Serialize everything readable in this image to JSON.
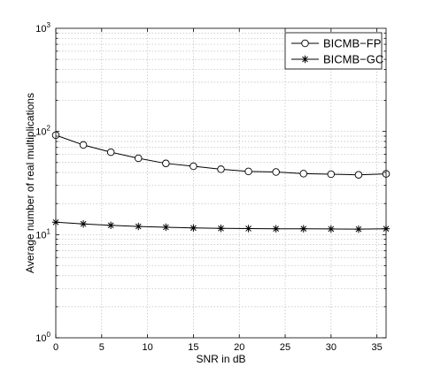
{
  "chart_data": {
    "type": "line",
    "xlabel": "SNR in dB",
    "ylabel": "Average number of real multiplications",
    "xlim": [
      0,
      36
    ],
    "ylim": [
      1,
      1000
    ],
    "yscale": "log",
    "grid": true,
    "legend_position": "top-right",
    "x_ticks": [
      "0",
      "5",
      "10",
      "15",
      "20",
      "25",
      "30",
      "35"
    ],
    "y_ticks": [
      {
        "base": "10",
        "exp": "0"
      },
      {
        "base": "10",
        "exp": "1"
      },
      {
        "base": "10",
        "exp": "2"
      },
      {
        "base": "10",
        "exp": "3"
      }
    ],
    "x": [
      0,
      3,
      6,
      9,
      12,
      15,
      18,
      21,
      24,
      27,
      30,
      33,
      36
    ],
    "series": [
      {
        "name": "BICMB−FP",
        "marker": "circle",
        "color": "#000000",
        "values": [
          92,
          74,
          63,
          55,
          49,
          46,
          43,
          41,
          40.5,
          39,
          38.5,
          38,
          38.8
        ]
      },
      {
        "name": "BICMB−GC",
        "marker": "star",
        "color": "#000000",
        "values": [
          13.2,
          12.7,
          12.3,
          12.0,
          11.8,
          11.6,
          11.5,
          11.45,
          11.4,
          11.4,
          11.35,
          11.3,
          11.4
        ]
      }
    ]
  }
}
